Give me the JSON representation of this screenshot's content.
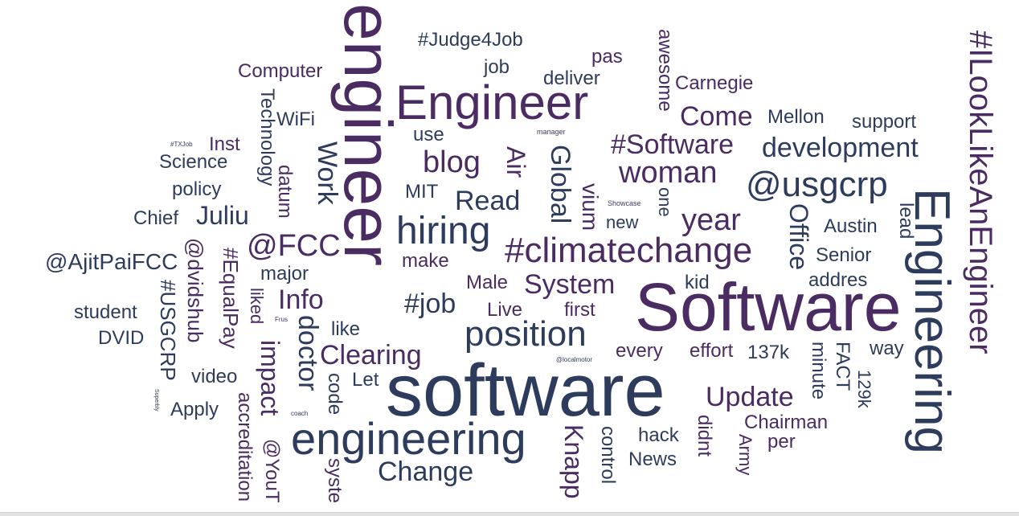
{
  "colors": {
    "dark": "#2d3c5c",
    "purple": "#4a2b62",
    "mid": "#3d3a60"
  },
  "words": [
    "engineer",
    "Software",
    "software",
    "Engineer",
    "engineering",
    "Engineering",
    "#ILookLikeAnEngineer",
    "#climatechange",
    "hiring",
    "position",
    "@usgcrp",
    "#Software",
    "development",
    "woman",
    "year",
    "blog",
    "@FCC",
    "Clearing",
    "Update",
    "Read",
    "System",
    "Change",
    "Come",
    "Air",
    "Global",
    "Work",
    "#job",
    "Info",
    "impact",
    "doctor",
    "Knapp",
    "Office",
    "vium",
    "@AjitPaiFCC",
    "Juliu",
    "#Judge4Job",
    "Computer",
    "Carnegie",
    "Mellon",
    "support",
    "deliver",
    "job",
    "pas",
    "awesome",
    "WiFi",
    "Inst",
    "Technology",
    "Science",
    "policy",
    "Chief",
    "datum",
    "MIT",
    "use",
    "new",
    "one",
    "lead",
    "Austin",
    "Senior",
    "addres",
    "major",
    "@dvidshub",
    "#EqualPay",
    "#USGCRP",
    "student",
    "DVID",
    "liked",
    "like",
    "video",
    "Apply",
    "accreditation",
    "@YouT",
    "code",
    "syste",
    "Let",
    "Male",
    "Live",
    "first",
    "make",
    "kid",
    "every",
    "effort",
    "137k",
    "minute",
    "FACT",
    "way",
    "129k",
    "Chairman",
    "per",
    "Army",
    "didnt",
    "control",
    "hack",
    "News",
    "manager",
    "#TXJob",
    "Showcase",
    "@localmotor",
    "Frus",
    "Superbly",
    "coach"
  ]
}
